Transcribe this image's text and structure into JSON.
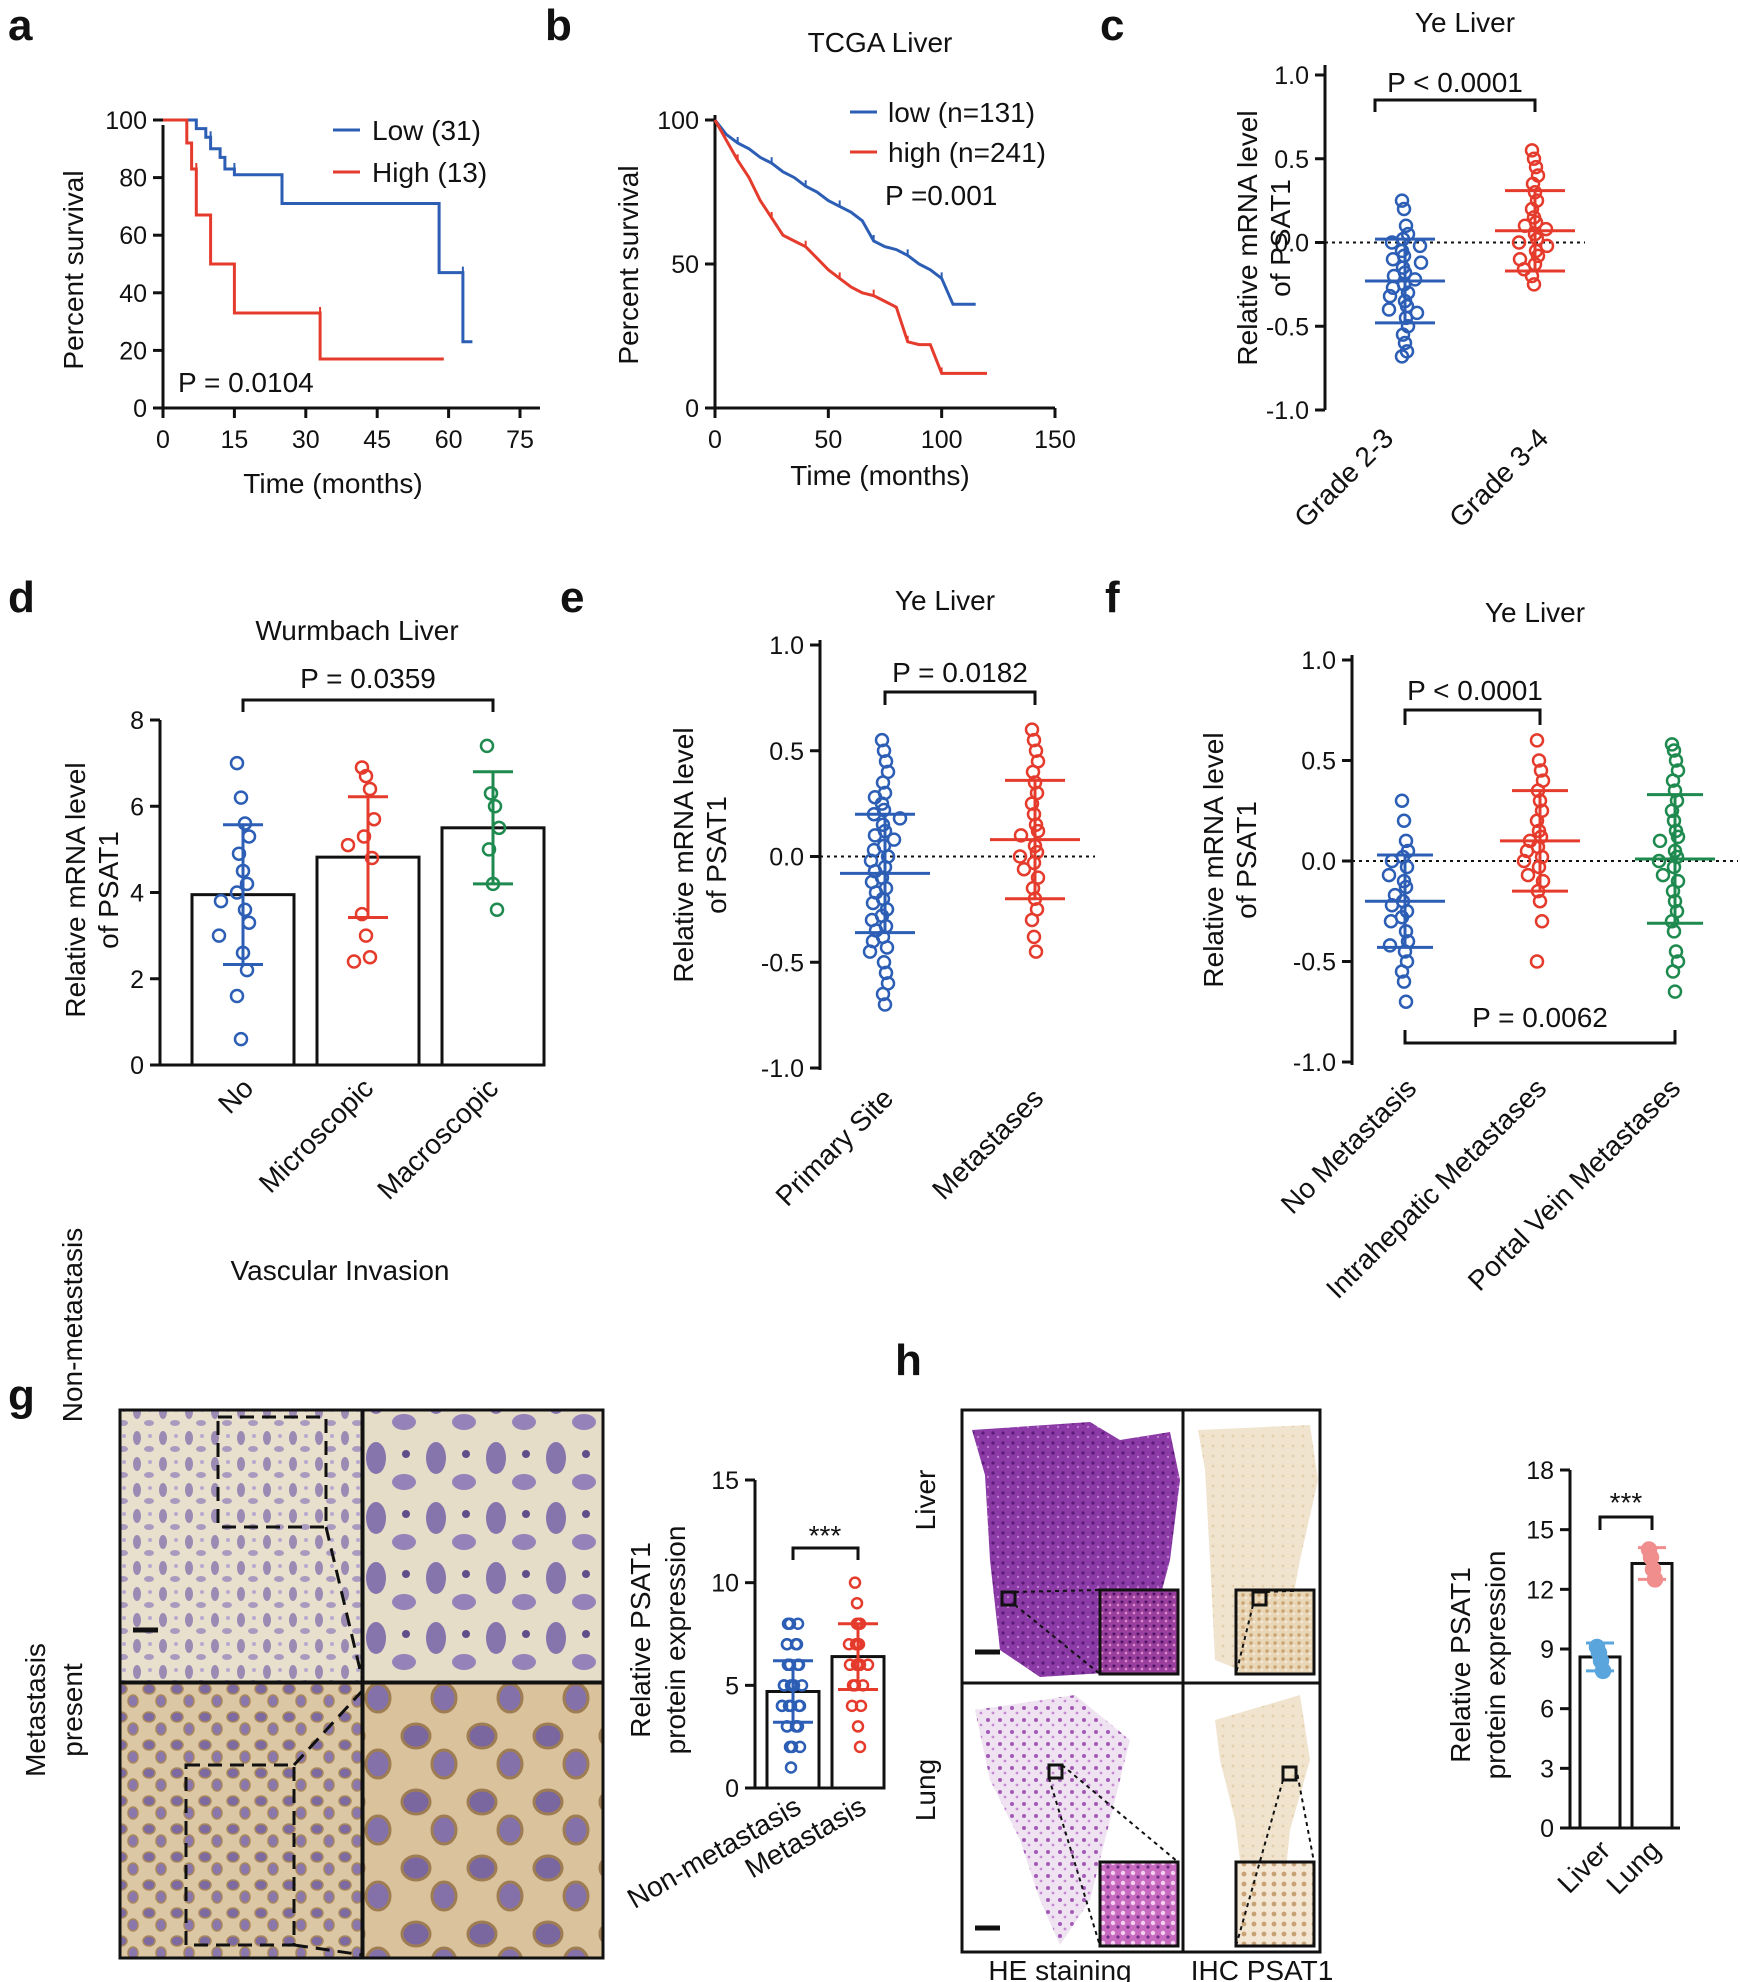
{
  "panel_labels": {
    "a": "a",
    "b": "b",
    "c": "c",
    "d": "d",
    "e": "e",
    "f": "f",
    "g": "g",
    "h": "h"
  },
  "colors": {
    "blue": "#2c5eb5",
    "red": "#e53b2c",
    "green": "#1f8a4f",
    "pink": "#f08e8e",
    "lightblue": "#59a5dc"
  },
  "chart_data": [
    {
      "id": "a",
      "type": "line",
      "title": "",
      "xlabel": "Time (months)",
      "ylabel": "Percent survival",
      "xlim": [
        0,
        75
      ],
      "ylim": [
        0,
        100
      ],
      "x_ticks": [
        "0",
        "15",
        "30",
        "45",
        "60",
        "75"
      ],
      "y_ticks": [
        "0",
        "20",
        "40",
        "60",
        "80",
        "100"
      ],
      "annotation": "P = 0.0104",
      "series": [
        {
          "name": "Low (31)",
          "color": "#2c5eb5",
          "x": [
            0,
            7,
            7,
            9,
            9,
            10,
            10,
            12,
            12,
            13,
            13,
            15,
            15,
            25,
            25,
            58,
            58,
            63,
            63,
            65
          ],
          "y": [
            100,
            100,
            97,
            97,
            94,
            94,
            90,
            90,
            87,
            87,
            83,
            83,
            81,
            81,
            71,
            71,
            47,
            47,
            23,
            23
          ]
        },
        {
          "name": "High (13)",
          "color": "#e53b2c",
          "x": [
            0,
            5,
            5,
            6,
            6,
            7,
            7,
            10,
            10,
            15,
            15,
            33,
            33,
            59
          ],
          "y": [
            100,
            100,
            92,
            92,
            83,
            83,
            67,
            67,
            50,
            50,
            33,
            33,
            17,
            17
          ]
        }
      ]
    },
    {
      "id": "b",
      "type": "line",
      "title": "TCGA Liver",
      "xlabel": "Time (months)",
      "ylabel": "Percent survival",
      "xlim": [
        0,
        150
      ],
      "ylim": [
        0,
        100
      ],
      "x_ticks": [
        "0",
        "50",
        "100",
        "150"
      ],
      "y_ticks": [
        "0",
        "50",
        "100"
      ],
      "annotation": "P =0.001",
      "series": [
        {
          "name": "low (n=131)",
          "color": "#2c5eb5",
          "x": [
            0,
            5,
            10,
            15,
            20,
            25,
            30,
            35,
            40,
            45,
            50,
            55,
            60,
            65,
            70,
            75,
            80,
            85,
            90,
            95,
            100,
            105,
            110,
            115
          ],
          "y": [
            100,
            95,
            92,
            90,
            87,
            85,
            82,
            80,
            77,
            75,
            72,
            70,
            68,
            65,
            58,
            56,
            55,
            53,
            50,
            48,
            45,
            36,
            36,
            36
          ]
        },
        {
          "name": "high (n=241)",
          "color": "#e53b2c",
          "x": [
            0,
            5,
            10,
            15,
            20,
            25,
            30,
            35,
            40,
            45,
            50,
            55,
            60,
            65,
            70,
            75,
            80,
            85,
            90,
            95,
            100,
            105,
            110,
            120
          ],
          "y": [
            100,
            93,
            86,
            80,
            72,
            66,
            60,
            58,
            56,
            52,
            48,
            45,
            42,
            40,
            39,
            37,
            35,
            23,
            22,
            22,
            12,
            12,
            12,
            12
          ]
        }
      ]
    },
    {
      "id": "c",
      "type": "scatter",
      "title": "Ye Liver",
      "ylabel_lines": [
        "Relative mRNA level",
        "of PSAT1"
      ],
      "ylim": [
        -1.0,
        1.0
      ],
      "y_ticks": [
        "-1.0",
        "-0.5",
        "0.0",
        "0.5",
        "1.0"
      ],
      "categories": [
        "Grade 2-3",
        "Grade 3-4"
      ],
      "annotation": "P < 0.0001",
      "groups": [
        {
          "name": "Grade 2-3",
          "color": "#2c5eb5",
          "mean": -0.23,
          "sd": 0.25,
          "values": [
            0.25,
            0.2,
            0.1,
            0.05,
            0.02,
            0.0,
            -0.02,
            -0.05,
            -0.08,
            -0.1,
            -0.12,
            -0.15,
            -0.18,
            -0.2,
            -0.22,
            -0.25,
            -0.27,
            -0.3,
            -0.32,
            -0.35,
            -0.38,
            -0.4,
            -0.42,
            -0.45,
            -0.5,
            -0.55,
            -0.6,
            -0.65,
            -0.68
          ]
        },
        {
          "name": "Grade 3-4",
          "color": "#e53b2c",
          "mean": 0.07,
          "sd": 0.24,
          "values": [
            0.55,
            0.5,
            0.45,
            0.4,
            0.35,
            0.3,
            0.25,
            0.2,
            0.15,
            0.12,
            0.1,
            0.08,
            0.05,
            0.02,
            0.0,
            -0.02,
            -0.05,
            -0.08,
            -0.1,
            -0.13,
            -0.16,
            -0.2,
            -0.25
          ]
        }
      ]
    },
    {
      "id": "d",
      "type": "bar",
      "title": "Wurmbach Liver",
      "xlabel": "Vascular Invasion",
      "ylabel_lines": [
        "Relative mRNA level",
        "of PSAT1"
      ],
      "ylim": [
        0,
        8
      ],
      "y_ticks": [
        "0",
        "2",
        "4",
        "6",
        "8"
      ],
      "categories": [
        "No",
        "Microscopic",
        "Macroscopic"
      ],
      "annotation": "P = 0.0359",
      "groups": [
        {
          "name": "No",
          "color": "#2c5eb5",
          "mean": 3.95,
          "sd": 1.62,
          "values": [
            7.0,
            6.2,
            5.6,
            5.3,
            4.9,
            4.5,
            4.2,
            4.0,
            3.8,
            3.6,
            3.3,
            3.0,
            2.6,
            2.2,
            1.6,
            0.6
          ]
        },
        {
          "name": "Microscopic",
          "color": "#e53b2c",
          "mean": 4.82,
          "sd": 1.4,
          "values": [
            6.9,
            6.7,
            6.4,
            5.7,
            5.3,
            5.1,
            4.8,
            3.5,
            3.0,
            2.5,
            2.4
          ]
        },
        {
          "name": "Macroscopic",
          "color": "#1f8a4f",
          "mean": 5.5,
          "sd": 1.3,
          "values": [
            7.4,
            6.3,
            6.0,
            5.5,
            5.0,
            4.2,
            3.6
          ]
        }
      ]
    },
    {
      "id": "e",
      "type": "scatter",
      "title": "Ye Liver",
      "ylabel_lines": [
        "Relative mRNA level",
        "of PSAT1"
      ],
      "ylim": [
        -1.0,
        1.0
      ],
      "y_ticks": [
        "-1.0",
        "-0.5",
        "0.0",
        "0.5",
        "1.0"
      ],
      "categories": [
        "Primary Site",
        "Metastases"
      ],
      "annotation": "P = 0.0182",
      "groups": [
        {
          "name": "Primary Site",
          "color": "#2c5eb5",
          "mean": -0.08,
          "sd": 0.28,
          "values": [
            0.55,
            0.5,
            0.45,
            0.4,
            0.35,
            0.3,
            0.28,
            0.25,
            0.22,
            0.2,
            0.18,
            0.15,
            0.12,
            0.1,
            0.08,
            0.05,
            0.03,
            0.0,
            -0.02,
            -0.05,
            -0.07,
            -0.1,
            -0.12,
            -0.15,
            -0.17,
            -0.2,
            -0.22,
            -0.25,
            -0.28,
            -0.3,
            -0.33,
            -0.35,
            -0.38,
            -0.4,
            -0.43,
            -0.45,
            -0.5,
            -0.55,
            -0.6,
            -0.65,
            -0.7
          ]
        },
        {
          "name": "Metastases",
          "color": "#e53b2c",
          "mean": 0.08,
          "sd": 0.28,
          "values": [
            0.6,
            0.55,
            0.5,
            0.45,
            0.4,
            0.35,
            0.3,
            0.25,
            0.2,
            0.15,
            0.12,
            0.1,
            0.05,
            0.02,
            0.0,
            -0.03,
            -0.06,
            -0.1,
            -0.15,
            -0.2,
            -0.25,
            -0.3,
            -0.38,
            -0.45
          ]
        }
      ]
    },
    {
      "id": "f",
      "type": "scatter",
      "title": "Ye Liver",
      "ylabel_lines": [
        "Relative mRNA level",
        "of PSAT1"
      ],
      "ylim": [
        -1.0,
        1.0
      ],
      "y_ticks": [
        "-1.0",
        "-0.5",
        "0.0",
        "0.5",
        "1.0"
      ],
      "categories": [
        "No Metastasis",
        "Intrahepatic Metastases",
        "Portal Vein Metastases"
      ],
      "annotations": [
        "P < 0.0001",
        "P = 0.0062"
      ],
      "groups": [
        {
          "name": "No Metastasis",
          "color": "#2c5eb5",
          "mean": -0.2,
          "sd": 0.23,
          "values": [
            0.3,
            0.2,
            0.1,
            0.05,
            0.02,
            0.0,
            -0.03,
            -0.07,
            -0.1,
            -0.13,
            -0.17,
            -0.2,
            -0.22,
            -0.25,
            -0.28,
            -0.3,
            -0.35,
            -0.4,
            -0.42,
            -0.45,
            -0.5,
            -0.55,
            -0.6,
            -0.7
          ]
        },
        {
          "name": "Intrahepatic Metastases",
          "color": "#e53b2c",
          "mean": 0.1,
          "sd": 0.25,
          "values": [
            0.6,
            0.5,
            0.45,
            0.4,
            0.35,
            0.3,
            0.25,
            0.2,
            0.15,
            0.12,
            0.1,
            0.07,
            0.05,
            0.02,
            0.0,
            -0.03,
            -0.07,
            -0.1,
            -0.15,
            -0.2,
            -0.3,
            -0.5
          ]
        },
        {
          "name": "Portal Vein Metastases",
          "color": "#1f8a4f",
          "mean": 0.01,
          "sd": 0.32,
          "values": [
            0.58,
            0.55,
            0.5,
            0.45,
            0.4,
            0.35,
            0.3,
            0.25,
            0.2,
            0.15,
            0.12,
            0.1,
            0.05,
            0.02,
            0.0,
            -0.03,
            -0.07,
            -0.1,
            -0.15,
            -0.2,
            -0.25,
            -0.3,
            -0.35,
            -0.45,
            -0.5,
            -0.55,
            -0.65
          ]
        }
      ]
    },
    {
      "id": "g",
      "type": "bar",
      "title": "",
      "ylabel_lines": [
        "Relative PSAT1",
        "protein expression"
      ],
      "ylim": [
        0,
        15
      ],
      "y_ticks": [
        "0",
        "5",
        "10",
        "15"
      ],
      "categories": [
        "Non-metastasis",
        "Metastasis"
      ],
      "annotation": "***",
      "groups": [
        {
          "name": "Non-metastasis",
          "color": "#2c5eb5",
          "mean": 4.7,
          "sd": 1.5,
          "values": [
            8,
            8,
            8,
            7,
            7,
            7,
            7,
            6,
            6,
            6,
            6,
            6,
            5,
            5,
            5,
            5,
            5,
            5,
            4,
            4,
            4,
            4,
            4,
            4,
            3,
            3,
            3,
            3,
            3,
            2,
            2,
            2,
            1
          ]
        },
        {
          "name": "Metastasis",
          "color": "#e53b2c",
          "mean": 6.4,
          "sd": 1.6,
          "values": [
            10,
            9,
            8,
            8,
            8,
            7,
            7,
            7,
            7,
            6,
            6,
            6,
            6,
            6,
            5,
            5,
            5,
            4,
            4,
            3,
            2
          ]
        }
      ]
    },
    {
      "id": "h",
      "type": "bar",
      "title": "",
      "ylabel_lines": [
        "Relative PSAT1",
        "protein expression"
      ],
      "ylim": [
        0,
        18
      ],
      "y_ticks": [
        "0",
        "3",
        "6",
        "9",
        "12",
        "15",
        "18"
      ],
      "categories": [
        "Liver",
        "Lung"
      ],
      "annotation": "***",
      "groups": [
        {
          "name": "Liver",
          "color": "#59a5dc",
          "mean": 8.6,
          "sd": 0.7,
          "values": [
            9.1,
            8.8,
            8.4,
            7.9
          ]
        },
        {
          "name": "Lung",
          "color": "#f08e8e",
          "mean": 13.3,
          "sd": 0.8,
          "values": [
            14.0,
            13.6,
            13.0,
            12.5
          ]
        }
      ]
    }
  ],
  "panel_g": {
    "row_labels": [
      "Non-metastasis",
      "Metastasis present"
    ]
  },
  "panel_h": {
    "row_labels": [
      "Liver",
      "Lung"
    ],
    "col_labels": [
      "HE staining",
      "IHC PSAT1"
    ]
  }
}
